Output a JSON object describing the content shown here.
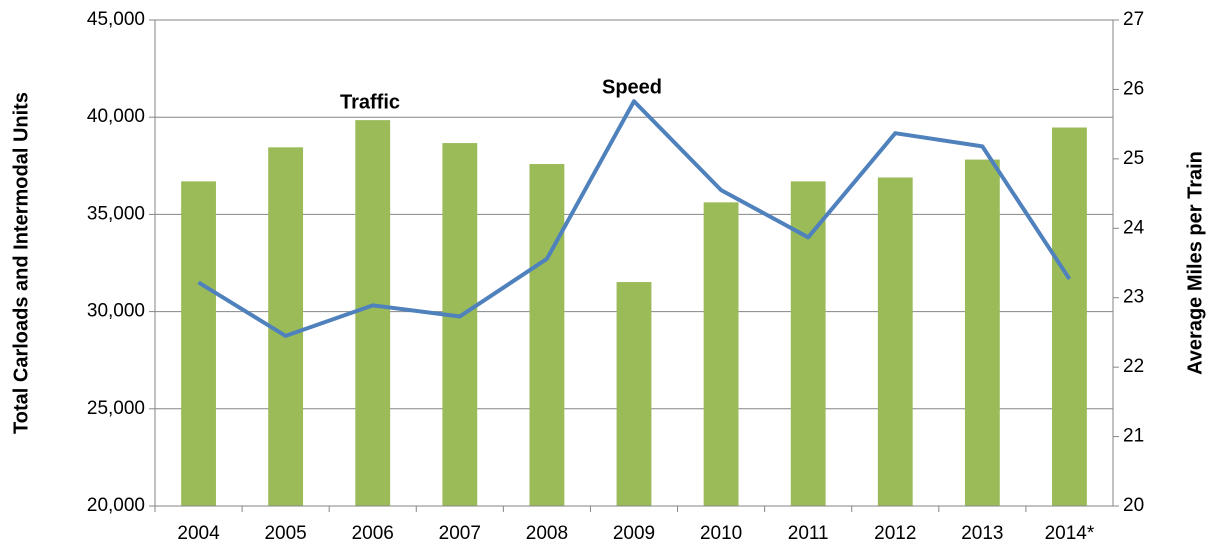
{
  "chart_data": {
    "type": "bar_line",
    "categories": [
      "2004",
      "2005",
      "2006",
      "2007",
      "2008",
      "2009",
      "2010",
      "2011",
      "2012",
      "2013",
      "2014*"
    ],
    "series": [
      {
        "name": "Traffic",
        "type": "bar",
        "color": "#9bbb59",
        "values": [
          36700,
          38450,
          39850,
          38670,
          37590,
          31520,
          35620,
          36700,
          36900,
          37820,
          39470
        ]
      },
      {
        "name": "Speed",
        "type": "line",
        "axis": "y2",
        "color": "#4f81bd",
        "values": [
          23.22,
          22.45,
          22.89,
          22.73,
          23.56,
          25.83,
          24.55,
          23.87,
          25.37,
          25.18,
          23.27
        ]
      }
    ],
    "ylabel": "Total Carloads and Intermodal Units",
    "y2label": "Average Miles per Train",
    "ylim": [
      20000,
      45000
    ],
    "yticks": [
      {
        "value": 20000,
        "label": "20,000"
      },
      {
        "value": 25000,
        "label": "25,000"
      },
      {
        "value": 30000,
        "label": "30,000"
      },
      {
        "value": 35000,
        "label": "35,000"
      },
      {
        "value": 40000,
        "label": "40,000"
      },
      {
        "value": 45000,
        "label": "45,000"
      }
    ],
    "y2lim": [
      20,
      27
    ],
    "y2ticks": [
      20,
      21,
      22,
      23,
      24,
      25,
      26,
      27
    ],
    "grid": true
  }
}
